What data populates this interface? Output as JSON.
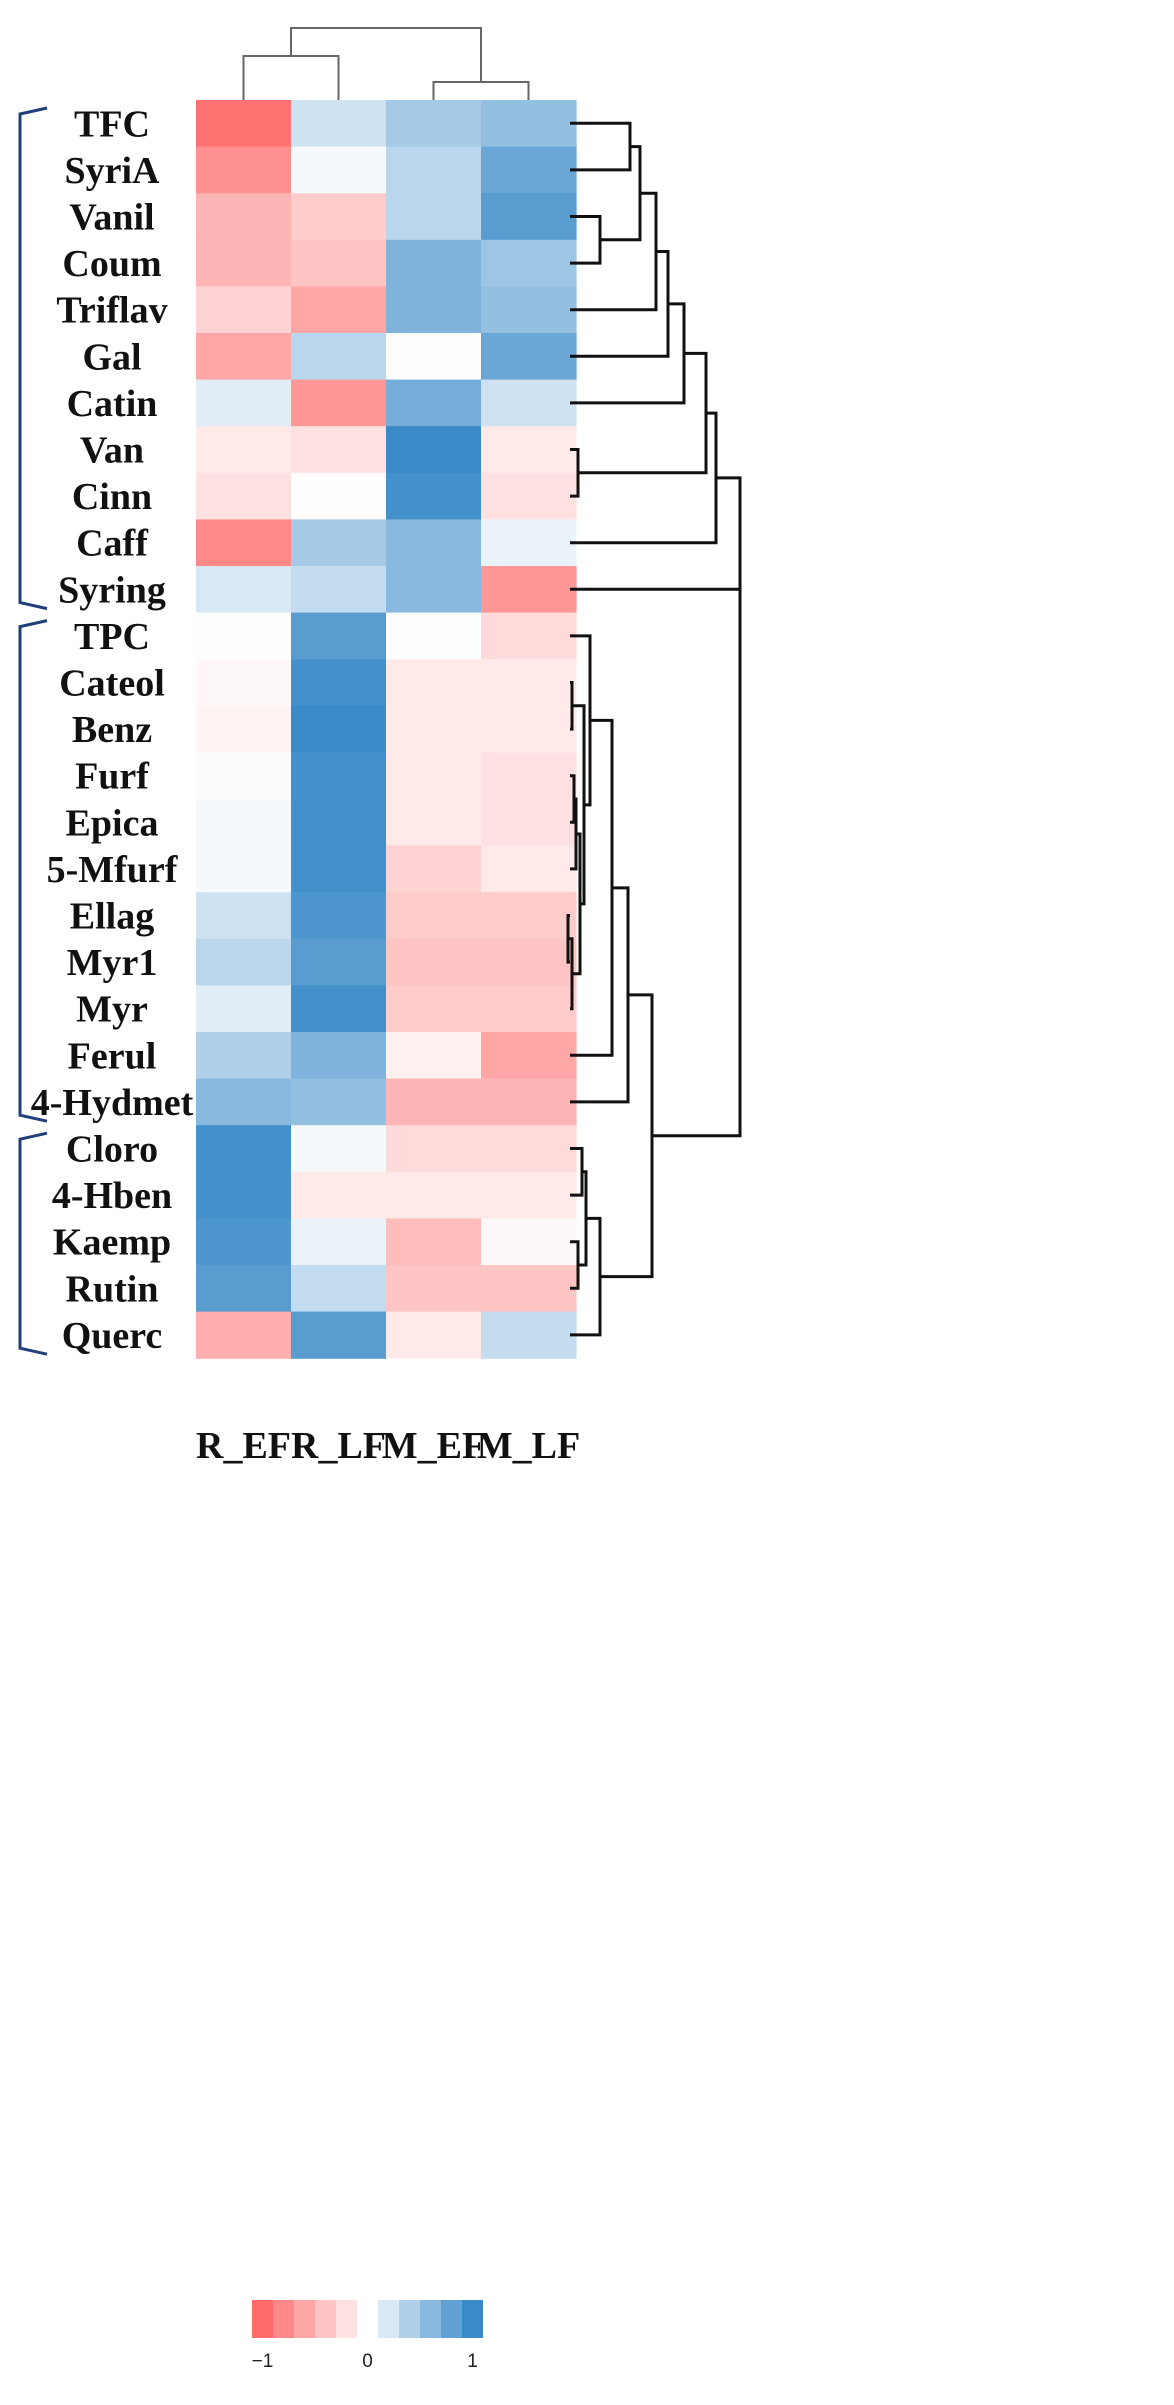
{
  "chart_data": {
    "type": "heatmap",
    "title": "",
    "columns": [
      "R_EF",
      "R_LF",
      "M_EF",
      "M_LF"
    ],
    "rows": [
      "TFC",
      "SyriA",
      "Vanil",
      "Coum",
      "Triflav",
      "Gal",
      "Catin",
      "Van",
      "Cinn",
      "Caff",
      "Syring",
      "TPC",
      "Cateol",
      "Benz",
      "Furf",
      "Epica",
      "5-Mfurf",
      "Ellag",
      "Myr1",
      "Myr",
      "Ferul",
      "4-Hydmet",
      "Cloro",
      "4-Hben",
      "Kaemp",
      "Rutin",
      "Querc"
    ],
    "values": [
      [
        -0.95,
        0.25,
        0.45,
        0.55
      ],
      [
        -0.75,
        0.05,
        0.35,
        0.75
      ],
      [
        -0.5,
        -0.35,
        0.35,
        0.85
      ],
      [
        -0.5,
        -0.4,
        0.65,
        0.5
      ],
      [
        -0.3,
        -0.6,
        0.65,
        0.55
      ],
      [
        -0.6,
        0.35,
        -0.02,
        0.75
      ],
      [
        0.15,
        -0.7,
        0.7,
        0.25
      ],
      [
        -0.15,
        -0.2,
        1.0,
        -0.15
      ],
      [
        -0.2,
        -0.02,
        0.95,
        -0.2
      ],
      [
        -0.8,
        0.45,
        0.6,
        0.1
      ],
      [
        0.2,
        0.3,
        0.6,
        -0.7
      ],
      [
        0.02,
        0.85,
        0.02,
        -0.25
      ],
      [
        -0.05,
        0.95,
        -0.15,
        -0.15
      ],
      [
        -0.08,
        1.0,
        -0.15,
        -0.15
      ],
      [
        0.03,
        0.95,
        -0.15,
        -0.2
      ],
      [
        0.05,
        0.95,
        -0.15,
        -0.2
      ],
      [
        0.05,
        0.95,
        -0.3,
        -0.15
      ],
      [
        0.25,
        0.9,
        -0.35,
        -0.35
      ],
      [
        0.35,
        0.85,
        -0.4,
        -0.4
      ],
      [
        0.15,
        0.95,
        -0.35,
        -0.35
      ],
      [
        0.4,
        0.65,
        -0.1,
        -0.6
      ],
      [
        0.6,
        0.55,
        -0.5,
        -0.5
      ],
      [
        0.95,
        0.05,
        -0.25,
        -0.25
      ],
      [
        0.95,
        -0.15,
        -0.15,
        -0.15
      ],
      [
        0.9,
        0.1,
        -0.45,
        -0.05
      ],
      [
        0.85,
        0.3,
        -0.4,
        -0.4
      ],
      [
        -0.55,
        0.85,
        -0.15,
        0.3
      ]
    ],
    "color_scale": {
      "low": "#ff6b6b",
      "mid": "#ffffff",
      "high": "#3a8ac8",
      "range": [
        -1,
        1
      ],
      "ticks": [
        {
          "value": -1,
          "label": "−1"
        },
        {
          "value": 0,
          "label": "0"
        },
        {
          "value": 1,
          "label": "1"
        }
      ]
    },
    "clusters": [
      {
        "rows": [
          "TFC",
          "Syring"
        ]
      },
      {
        "rows": [
          "TPC",
          "4-Hydmet"
        ]
      },
      {
        "rows": [
          "Cloro",
          "Querc"
        ]
      }
    ],
    "column_dendrogram": "(R_EF,R_LF),(M_EF,M_LF)",
    "bracket_color": "#1f3f7a"
  }
}
